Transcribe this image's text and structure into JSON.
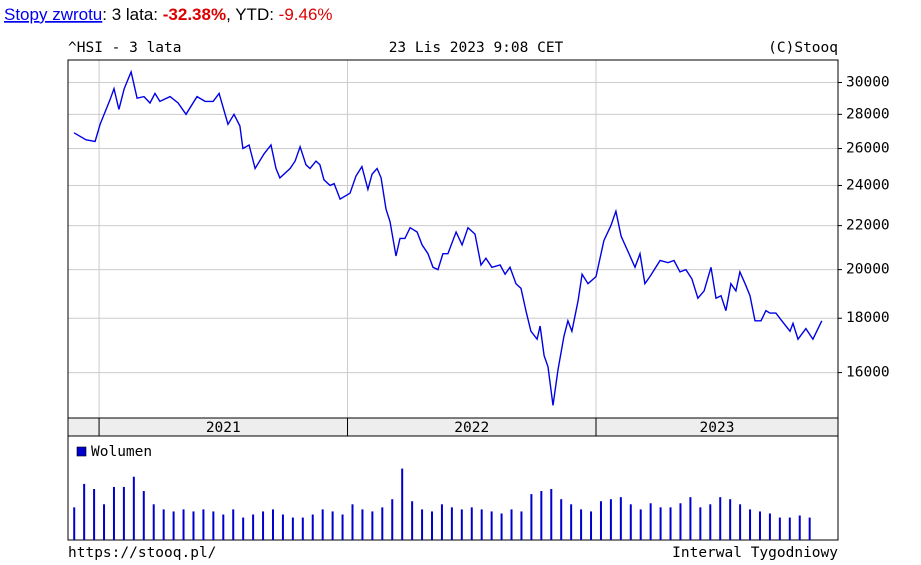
{
  "header": {
    "link": "Stopy zwrotu",
    "period_label": ": 3 lata: ",
    "period_return": "-32.38%",
    "ytd_label": ", YTD: ",
    "ytd_return": "-9.46%"
  },
  "footer": {
    "url": "https://stooq.pl/",
    "interval": "Interwal Tygodniowy"
  },
  "chart_data": [
    {
      "type": "line",
      "title": "^HSI - 3 lata",
      "subtitle": "23 Lis 2023 9:08 CET",
      "source": "(C)Stooq",
      "color": "#0000e6",
      "log": true,
      "grid": true,
      "xlim": [
        2020.875,
        2023.974
      ],
      "xticks": [
        2021,
        2022,
        2023
      ],
      "ylim": [
        14500,
        31500
      ],
      "yticks": [
        16000,
        18000,
        20000,
        22000,
        24000,
        26000,
        28000,
        30000
      ],
      "x": [
        2020.899,
        2020.948,
        2020.984,
        2021.004,
        2021.044,
        2021.06,
        2021.08,
        2021.101,
        2021.129,
        2021.153,
        2021.181,
        2021.205,
        2021.225,
        2021.245,
        2021.286,
        2021.318,
        2021.35,
        2021.394,
        2021.427,
        2021.459,
        2021.483,
        2021.519,
        2021.543,
        2021.567,
        2021.579,
        2021.604,
        2021.628,
        2021.664,
        2021.692,
        2021.712,
        2021.728,
        2021.769,
        2021.789,
        2021.809,
        2021.833,
        2021.849,
        2021.873,
        2021.889,
        2021.905,
        2021.93,
        2021.946,
        2021.97,
        2022.01,
        2022.034,
        2022.058,
        2022.082,
        2022.099,
        2022.119,
        2022.135,
        2022.155,
        2022.171,
        2022.195,
        2022.211,
        2022.231,
        2022.252,
        2022.28,
        2022.3,
        2022.324,
        2022.344,
        2022.364,
        2022.384,
        2022.404,
        2022.437,
        2022.461,
        2022.485,
        2022.513,
        2022.537,
        2022.557,
        2022.581,
        2022.614,
        2022.634,
        2022.654,
        2022.678,
        2022.698,
        2022.718,
        2022.738,
        2022.763,
        2022.775,
        2022.791,
        2022.807,
        2022.827,
        2022.847,
        2022.871,
        2022.887,
        2022.903,
        2022.928,
        2022.944,
        2022.968,
        2023.0,
        2023.032,
        2023.06,
        2023.08,
        2023.101,
        2023.129,
        2023.157,
        2023.177,
        2023.197,
        2023.217,
        2023.258,
        2023.29,
        2023.314,
        2023.338,
        2023.362,
        2023.386,
        2023.41,
        2023.435,
        2023.463,
        2023.483,
        2023.503,
        2023.523,
        2023.543,
        2023.563,
        2023.579,
        2023.6,
        2023.62,
        2023.64,
        2023.664,
        2023.684,
        2023.7,
        2023.724,
        2023.748,
        2023.781,
        2023.793,
        2023.813,
        2023.845,
        2023.873,
        2023.909
      ],
      "values": [
        26900,
        26500,
        26400,
        27400,
        28900,
        29600,
        28300,
        29600,
        30700,
        29000,
        29100,
        28700,
        29300,
        28800,
        29100,
        28700,
        28000,
        29100,
        28800,
        28800,
        29300,
        27400,
        28000,
        27300,
        26000,
        26200,
        24900,
        25700,
        26200,
        24900,
        24400,
        24900,
        25300,
        26100,
        25100,
        24900,
        25300,
        25100,
        24300,
        24000,
        24100,
        23300,
        23600,
        24500,
        25000,
        23800,
        24600,
        24900,
        24400,
        22800,
        22200,
        20600,
        21400,
        21400,
        21900,
        21700,
        21100,
        20700,
        20100,
        20000,
        20700,
        20700,
        21700,
        21100,
        21900,
        21600,
        20200,
        20500,
        20100,
        20200,
        19800,
        20100,
        19400,
        19200,
        18300,
        17500,
        17200,
        17700,
        16600,
        16200,
        14900,
        16100,
        17300,
        17900,
        17500,
        18700,
        19800,
        19400,
        19700,
        21300,
        22000,
        22700,
        21500,
        20800,
        20100,
        20700,
        19400,
        19700,
        20400,
        20300,
        20400,
        19900,
        20000,
        19600,
        18800,
        19100,
        20100,
        18800,
        18900,
        18300,
        19400,
        19100,
        19900,
        19400,
        18900,
        17900,
        17900,
        18300,
        18200,
        18200,
        17900,
        17500,
        17800,
        17200,
        17600,
        17200,
        17900
      ]
    },
    {
      "type": "bar",
      "xlim": [
        2020.875,
        2023.974
      ],
      "ylim": [
        0,
        100
      ],
      "x": [
        2020.9,
        2020.94,
        2020.98,
        2021.02,
        2021.06,
        2021.1,
        2021.14,
        2021.18,
        2021.22,
        2021.26,
        2021.3,
        2021.34,
        2021.38,
        2021.42,
        2021.46,
        2021.5,
        2021.54,
        2021.58,
        2021.62,
        2021.66,
        2021.7,
        2021.74,
        2021.78,
        2021.82,
        2021.86,
        2021.9,
        2021.94,
        2021.98,
        2022.02,
        2022.06,
        2022.1,
        2022.14,
        2022.18,
        2022.22,
        2022.26,
        2022.3,
        2022.34,
        2022.38,
        2022.42,
        2022.46,
        2022.5,
        2022.54,
        2022.58,
        2022.62,
        2022.66,
        2022.7,
        2022.74,
        2022.78,
        2022.82,
        2022.86,
        2022.9,
        2022.94,
        2022.98,
        2023.02,
        2023.06,
        2023.1,
        2023.14,
        2023.18,
        2023.22,
        2023.26,
        2023.3,
        2023.34,
        2023.38,
        2023.42,
        2023.46,
        2023.5,
        2023.54,
        2023.58,
        2023.62,
        2023.66,
        2023.7,
        2023.74,
        2023.78,
        2023.82,
        2023.86
      ],
      "series": [
        {
          "name": "Wolumen",
          "color": "#0000cc",
          "values": [
            32,
            55,
            50,
            35,
            52,
            52,
            62,
            48,
            35,
            30,
            28,
            30,
            28,
            30,
            28,
            25,
            30,
            22,
            25,
            28,
            30,
            25,
            22,
            22,
            25,
            30,
            28,
            25,
            35,
            30,
            28,
            32,
            40,
            70,
            38,
            30,
            28,
            35,
            32,
            30,
            32,
            30,
            28,
            26,
            30,
            28,
            45,
            48,
            50,
            40,
            35,
            30,
            28,
            38,
            40,
            42,
            35,
            30,
            36,
            32,
            32,
            36,
            42,
            32,
            35,
            42,
            40,
            35,
            30,
            28,
            26,
            22,
            22,
            24,
            22
          ]
        }
      ]
    }
  ]
}
